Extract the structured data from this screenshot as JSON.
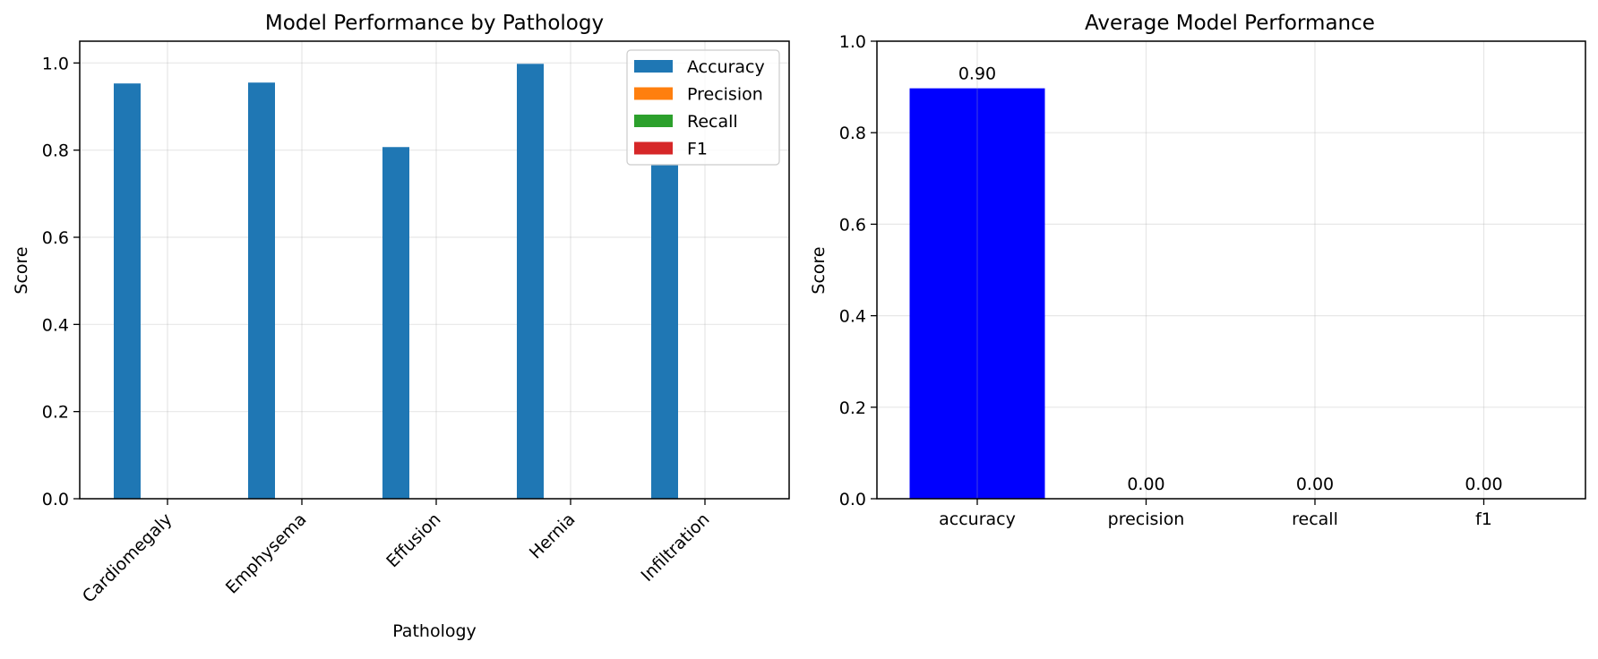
{
  "chart_data": [
    {
      "type": "bar",
      "title": "Model Performance by Pathology",
      "xlabel": "Pathology",
      "ylabel": "Score",
      "categories": [
        "Cardiomegaly",
        "Emphysema",
        "Effusion",
        "Hernia",
        "Infiltration"
      ],
      "series": [
        {
          "name": "Accuracy",
          "color": "#1f77b4",
          "values": [
            0.953,
            0.955,
            0.807,
            0.998,
            0.768
          ]
        },
        {
          "name": "Precision",
          "color": "#ff7f0e",
          "values": [
            0,
            0,
            0,
            0,
            0
          ]
        },
        {
          "name": "Recall",
          "color": "#2ca02c",
          "values": [
            0,
            0,
            0,
            0,
            0
          ]
        },
        {
          "name": "F1",
          "color": "#d62728",
          "values": [
            0,
            0,
            0,
            0,
            0
          ]
        }
      ],
      "yticks": [
        "0.0",
        "0.2",
        "0.4",
        "0.6",
        "0.8",
        "1.0"
      ],
      "ylim": [
        0,
        1.05
      ],
      "grid": true,
      "legend": "top-right"
    },
    {
      "type": "bar",
      "title": "Average Model Performance",
      "xlabel": "",
      "ylabel": "Score",
      "categories": [
        "accuracy",
        "precision",
        "recall",
        "f1"
      ],
      "values": [
        0.897,
        0,
        0,
        0
      ],
      "data_labels": [
        "0.90",
        "0.00",
        "0.00",
        "0.00"
      ],
      "color": "#0000ff",
      "yticks": [
        "0.0",
        "0.2",
        "0.4",
        "0.6",
        "0.8",
        "1.0"
      ],
      "ylim": [
        0,
        1.0
      ],
      "grid": true
    }
  ]
}
